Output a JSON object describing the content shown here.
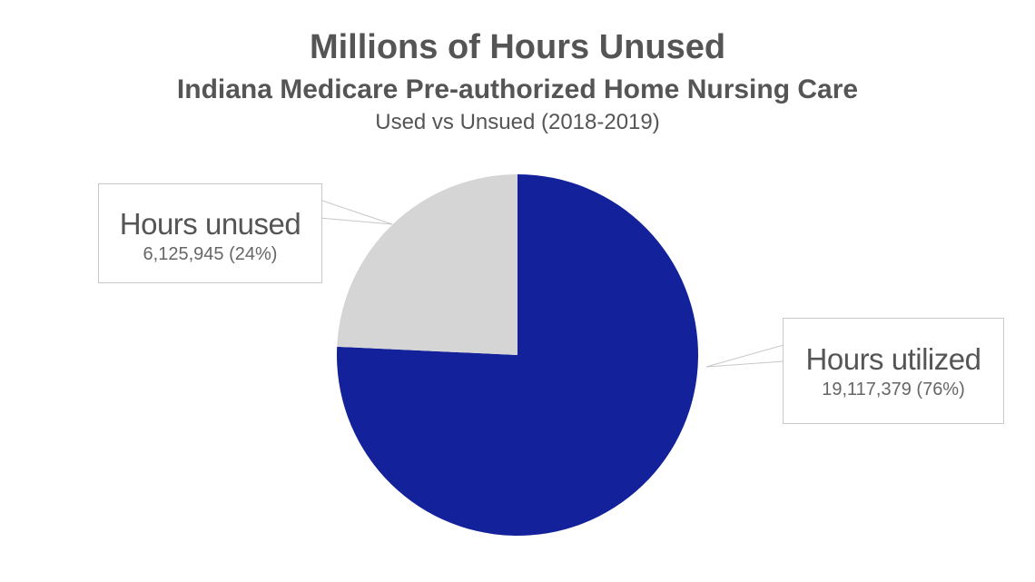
{
  "chart_data": {
    "type": "pie",
    "title": "Millions of Hours Unused",
    "subtitle": "Indiana Medicare Pre-authorized Home Nursing Care",
    "caption": "Used vs Unsued (2018-2019)",
    "slices": [
      {
        "name": "Hours utilized",
        "value": 19117379,
        "percent": 76,
        "value_label": "19,117,379 (76%)",
        "color": "#13229b"
      },
      {
        "name": "Hours unused",
        "value": 6125945,
        "percent": 24,
        "value_label": "6,125,945 (24%)",
        "color": "#d6d5d5"
      }
    ]
  }
}
